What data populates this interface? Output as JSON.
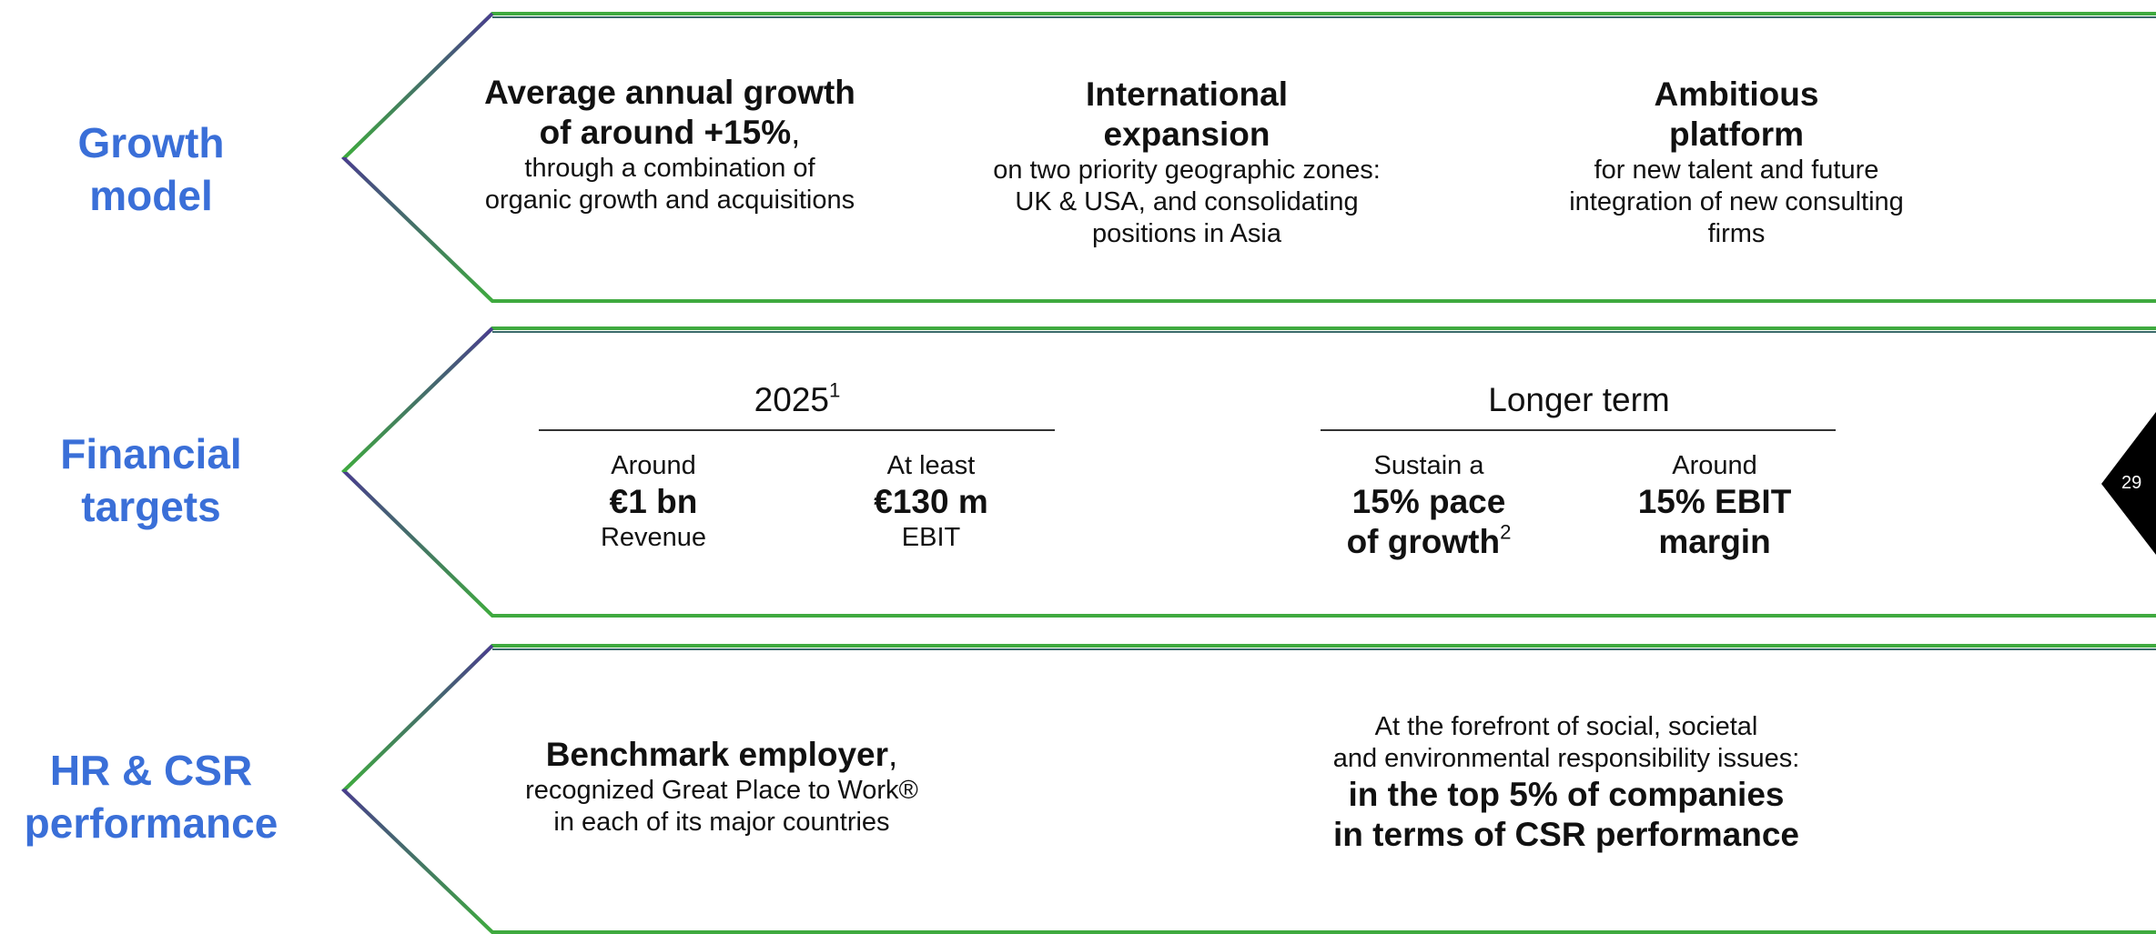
{
  "page_number": "29",
  "rows": [
    {
      "label": [
        "Growth",
        "model"
      ],
      "items": [
        {
          "bold": [
            "Average annual growth",
            "of around +15%"
          ],
          "suffix": ",",
          "text": [
            "through a combination of",
            "organic growth and acquisitions"
          ]
        },
        {
          "bold": [
            "International",
            "expansion"
          ],
          "text": [
            "on two priority geographic zones:",
            "UK & USA, and consolidating",
            "positions in Asia"
          ]
        },
        {
          "bold": [
            "Ambitious",
            "platform"
          ],
          "text": [
            "for new talent and future",
            "integration of new consulting",
            "firms"
          ]
        }
      ]
    },
    {
      "label": [
        "Financial",
        "targets"
      ],
      "groups": [
        {
          "title": "2025",
          "title_sup": "1",
          "items": [
            {
              "pre": "Around",
              "value": [
                "€1 bn"
              ],
              "post": "Revenue"
            },
            {
              "pre": "At least",
              "value": [
                "€130 m"
              ],
              "post": "EBIT"
            }
          ]
        },
        {
          "title": "Longer term",
          "items": [
            {
              "pre": "Sustain a",
              "value": [
                "15% pace",
                "of growth"
              ],
              "value_sup": "2"
            },
            {
              "pre": "Around",
              "value": [
                "15% EBIT",
                "margin"
              ]
            }
          ]
        }
      ]
    },
    {
      "label": [
        "HR & CSR",
        "performance"
      ],
      "items": [
        {
          "bold": [
            "Benchmark employer"
          ],
          "suffix": ",",
          "text": [
            "recognized Great Place to Work®",
            "in each of its major countries"
          ]
        },
        {
          "lead": [
            "At the forefront of social, societal",
            "and environmental responsibility issues:"
          ],
          "bold": [
            "in the top 5% of companies",
            "in terms of CSR performance"
          ]
        }
      ]
    }
  ]
}
